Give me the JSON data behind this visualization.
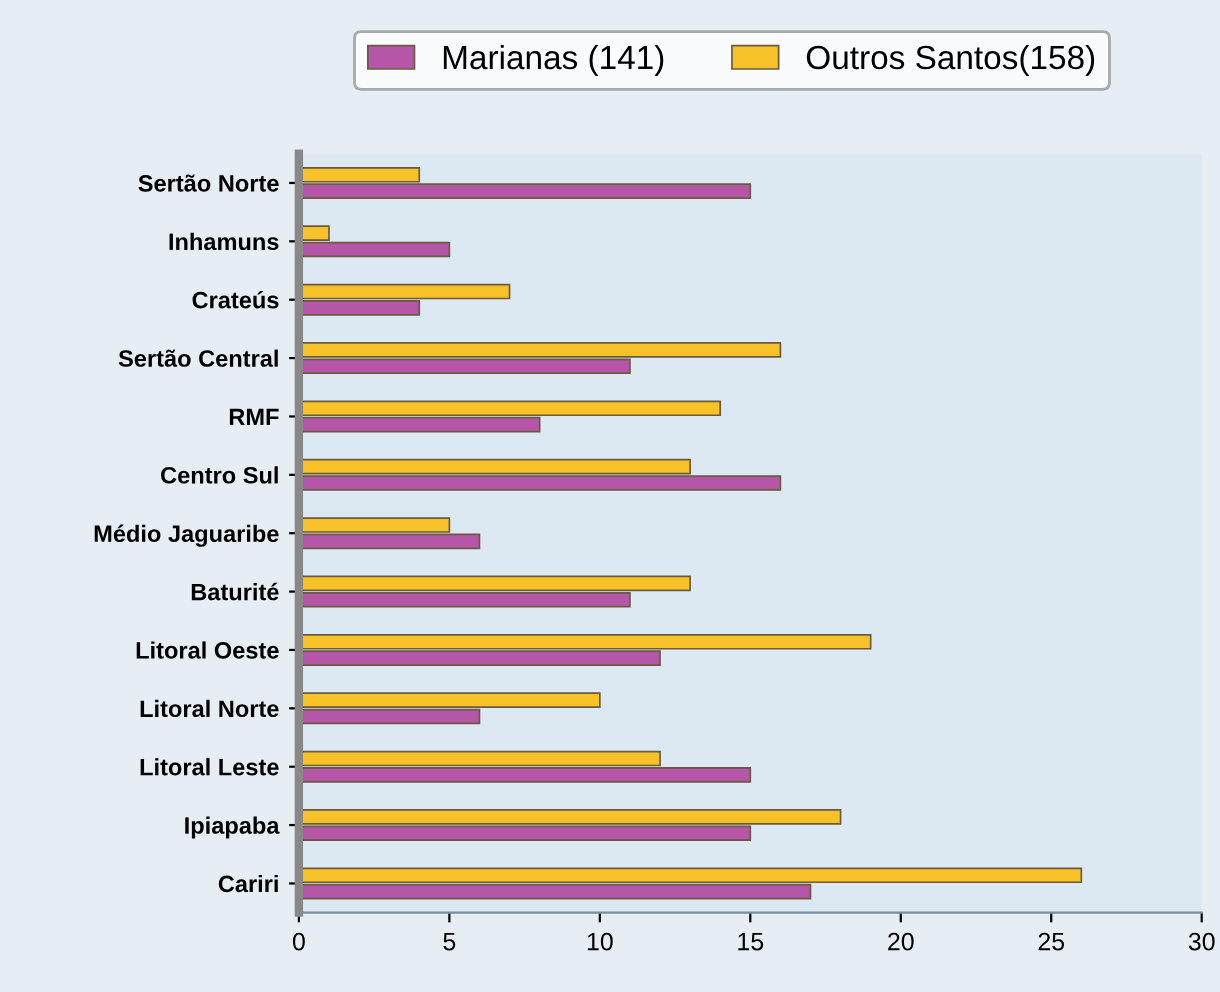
{
  "chart_data": {
    "type": "bar",
    "orientation": "horizontal",
    "categories": [
      "Sertão Norte",
      "Inhamuns",
      "Crateús",
      "Sertão Central",
      "RMF",
      "Centro Sul",
      "Médio Jaguaribe",
      "Baturité",
      "Litoral Oeste",
      "Litoral Norte",
      "Litoral Leste",
      "Ipiapaba",
      "Cariri"
    ],
    "series": [
      {
        "name": "Marianas (141)",
        "color": "#b556a8",
        "values": [
          15,
          5,
          4,
          11,
          8,
          16,
          6,
          11,
          12,
          6,
          15,
          15,
          17
        ]
      },
      {
        "name": "Outros Santos(158)",
        "color": "#f6c228",
        "values": [
          4,
          1,
          7,
          16,
          14,
          13,
          5,
          13,
          19,
          10,
          12,
          18,
          26
        ]
      }
    ],
    "xlim": [
      0,
      30
    ],
    "xticks": [
      0,
      5,
      10,
      15,
      20,
      25,
      30
    ],
    "grid": false,
    "legend": "top"
  }
}
